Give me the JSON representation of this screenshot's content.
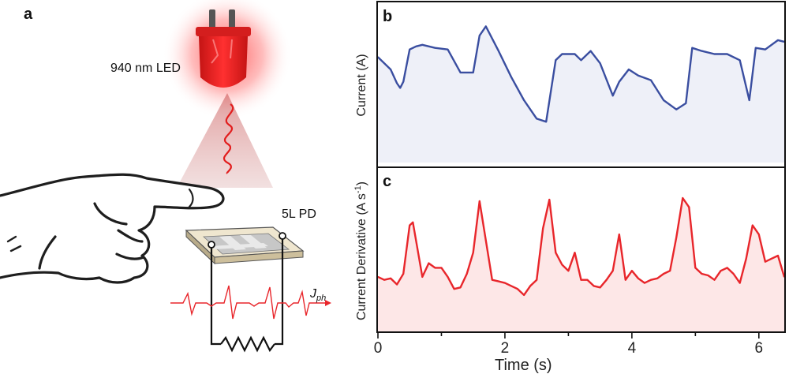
{
  "figure": {
    "panel_a": {
      "letter": "a",
      "led_label": "940 nm LED",
      "device_label": "5L PD",
      "signal_label_main": "J",
      "signal_label_sub": "ph"
    }
  },
  "colors": {
    "current": "#3a4ea0",
    "current_fill": "#eef0f8",
    "derivative": "#e8262b",
    "derivative_fill": "#fde7e7",
    "led": "#e21d1d"
  },
  "chart_data": [
    {
      "type": "area",
      "panel": "b",
      "ylabel": "Current (A)",
      "xlabel": "",
      "xlim": [
        0,
        6.4
      ],
      "ylim": [
        0,
        1
      ],
      "yticks_shown": false,
      "grid": false,
      "x": [
        0.0,
        0.2,
        0.3,
        0.35,
        0.4,
        0.5,
        0.6,
        0.7,
        0.9,
        1.1,
        1.3,
        1.5,
        1.6,
        1.7,
        1.9,
        2.1,
        2.3,
        2.5,
        2.65,
        2.8,
        2.9,
        3.1,
        3.2,
        3.35,
        3.5,
        3.7,
        3.8,
        3.95,
        4.1,
        4.3,
        4.5,
        4.7,
        4.85,
        4.95,
        5.1,
        5.3,
        5.5,
        5.7,
        5.85,
        5.95,
        6.1,
        6.3,
        6.4
      ],
      "values": [
        0.68,
        0.6,
        0.51,
        0.48,
        0.52,
        0.73,
        0.75,
        0.76,
        0.74,
        0.73,
        0.58,
        0.58,
        0.82,
        0.88,
        0.72,
        0.55,
        0.4,
        0.28,
        0.26,
        0.66,
        0.7,
        0.7,
        0.66,
        0.72,
        0.64,
        0.43,
        0.52,
        0.6,
        0.56,
        0.53,
        0.4,
        0.34,
        0.38,
        0.74,
        0.72,
        0.7,
        0.7,
        0.66,
        0.4,
        0.74,
        0.73,
        0.79,
        0.78
      ]
    },
    {
      "type": "area",
      "panel": "c",
      "ylabel": "Current Derivative (A s⁻¹)",
      "xlabel": "Time (s)",
      "xlim": [
        0,
        6.4
      ],
      "ylim": [
        0,
        1
      ],
      "yticks_shown": false,
      "grid": false,
      "xticks": [
        0,
        2,
        4,
        6
      ],
      "x": [
        0.0,
        0.1,
        0.2,
        0.3,
        0.4,
        0.5,
        0.55,
        0.6,
        0.7,
        0.8,
        0.9,
        1.0,
        1.1,
        1.2,
        1.3,
        1.4,
        1.5,
        1.6,
        1.7,
        1.8,
        1.9,
        2.0,
        2.1,
        2.2,
        2.3,
        2.4,
        2.5,
        2.6,
        2.7,
        2.8,
        2.9,
        3.0,
        3.1,
        3.2,
        3.3,
        3.4,
        3.5,
        3.6,
        3.7,
        3.8,
        3.9,
        4.0,
        4.1,
        4.2,
        4.3,
        4.4,
        4.5,
        4.6,
        4.7,
        4.8,
        4.9,
        5.0,
        5.1,
        5.2,
        5.3,
        5.4,
        5.5,
        5.6,
        5.7,
        5.8,
        5.9,
        6.0,
        6.1,
        6.2,
        6.3,
        6.4
      ],
      "values": [
        0.36,
        0.34,
        0.35,
        0.31,
        0.38,
        0.7,
        0.72,
        0.6,
        0.36,
        0.45,
        0.42,
        0.42,
        0.36,
        0.28,
        0.29,
        0.38,
        0.52,
        0.86,
        0.6,
        0.34,
        0.33,
        0.32,
        0.3,
        0.28,
        0.24,
        0.3,
        0.34,
        0.68,
        0.87,
        0.52,
        0.44,
        0.4,
        0.52,
        0.34,
        0.34,
        0.3,
        0.29,
        0.34,
        0.4,
        0.64,
        0.34,
        0.4,
        0.35,
        0.32,
        0.34,
        0.35,
        0.38,
        0.4,
        0.62,
        0.88,
        0.82,
        0.42,
        0.38,
        0.37,
        0.34,
        0.4,
        0.42,
        0.38,
        0.32,
        0.48,
        0.7,
        0.64,
        0.46,
        0.48,
        0.5,
        0.36
      ]
    }
  ]
}
